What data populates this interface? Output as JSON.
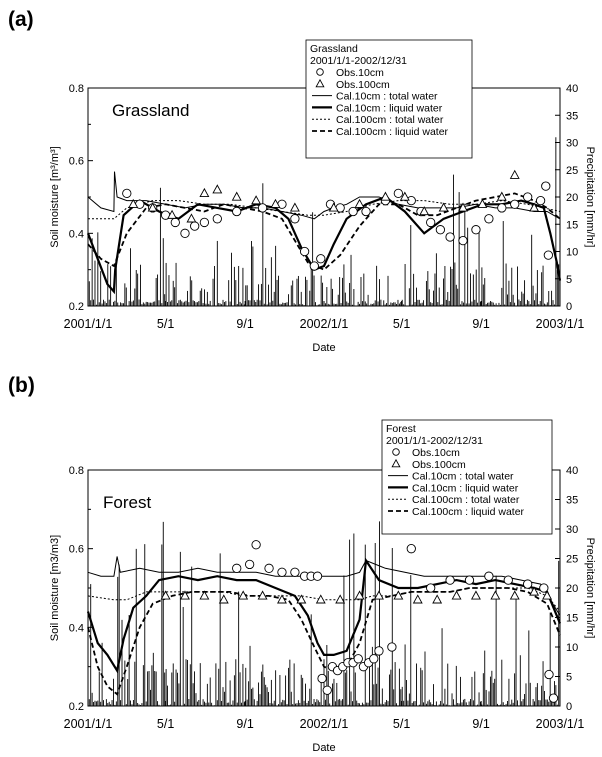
{
  "chart_data": [
    {
      "type": "line",
      "panel_label": "(a)",
      "panel_title": "Grassland",
      "xlabel": "Date",
      "ylabel": "Soil moisture [m³/m³]",
      "y2label": "Precipitation [mm/hr]",
      "ylim": [
        0.2,
        0.8
      ],
      "y2lim": [
        0,
        40
      ],
      "x_ticks": [
        "2001/1/1",
        "5/1",
        "9/1",
        "2002/1/1",
        "5/1",
        "9/1",
        "2003/1/1"
      ],
      "y_ticks": [
        "0.2",
        "0.4",
        "0.6",
        "0.8"
      ],
      "y2_ticks": [
        "0",
        "5",
        "10",
        "15",
        "20",
        "25",
        "30",
        "35",
        "40"
      ],
      "legend": {
        "title": "Grassland",
        "period": "2001/1/1-2002/12/31",
        "entries": [
          "Obs.10cm",
          "Obs.100cm",
          "Cal.10cm : total water",
          "Cal.10cm : liquid water",
          "Cal.100cm : total water",
          "Cal.100cm : liquid water"
        ]
      },
      "series": [
        {
          "name": "Cal.10cm : total water",
          "x": [
            0,
            20,
            40,
            41,
            45,
            60,
            90,
            120,
            150,
            180,
            210,
            240,
            270,
            300,
            330,
            350,
            365,
            380,
            400,
            420,
            450,
            480,
            510,
            540,
            570,
            600,
            630,
            660,
            690,
            710,
            720,
            730
          ],
          "values": [
            0.5,
            0.47,
            0.46,
            0.57,
            0.5,
            0.49,
            0.49,
            0.48,
            0.47,
            0.48,
            0.48,
            0.47,
            0.47,
            0.46,
            0.45,
            0.44,
            0.46,
            0.47,
            0.48,
            0.5,
            0.5,
            0.48,
            0.47,
            0.47,
            0.47,
            0.48,
            0.47,
            0.47,
            0.46,
            0.46,
            0.45,
            0.44
          ]
        },
        {
          "name": "Cal.10cm : liquid water",
          "x": [
            0,
            15,
            30,
            40,
            42,
            55,
            80,
            110,
            140,
            170,
            200,
            230,
            260,
            290,
            310,
            330,
            350,
            365,
            380,
            400,
            430,
            460,
            490,
            520,
            550,
            580,
            610,
            640,
            670,
            690,
            705,
            715,
            725,
            730
          ],
          "values": [
            0.4,
            0.33,
            0.26,
            0.24,
            0.3,
            0.45,
            0.49,
            0.46,
            0.44,
            0.48,
            0.47,
            0.46,
            0.48,
            0.47,
            0.44,
            0.36,
            0.3,
            0.31,
            0.37,
            0.44,
            0.48,
            0.5,
            0.46,
            0.4,
            0.44,
            0.46,
            0.48,
            0.48,
            0.49,
            0.48,
            0.47,
            0.4,
            0.32,
            0.27
          ]
        },
        {
          "name": "Cal.100cm : total water",
          "x": [
            0,
            40,
            60,
            100,
            140,
            180,
            220,
            260,
            300,
            340,
            365,
            400,
            440,
            480,
            520,
            560,
            600,
            640,
            680,
            730
          ],
          "values": [
            0.44,
            0.44,
            0.47,
            0.49,
            0.49,
            0.48,
            0.48,
            0.47,
            0.46,
            0.45,
            0.45,
            0.46,
            0.48,
            0.49,
            0.49,
            0.48,
            0.48,
            0.49,
            0.48,
            0.46
          ]
        },
        {
          "name": "Cal.100cm : liquid water",
          "x": [
            0,
            20,
            40,
            60,
            90,
            120,
            150,
            180,
            210,
            240,
            270,
            300,
            320,
            340,
            365,
            390,
            420,
            450,
            480,
            510,
            540,
            570,
            600,
            630,
            660,
            690,
            710,
            730
          ],
          "values": [
            0.37,
            0.33,
            0.31,
            0.4,
            0.47,
            0.48,
            0.47,
            0.46,
            0.48,
            0.47,
            0.46,
            0.44,
            0.38,
            0.32,
            0.3,
            0.34,
            0.42,
            0.48,
            0.48,
            0.45,
            0.45,
            0.47,
            0.49,
            0.5,
            0.51,
            0.49,
            0.47,
            0.44
          ]
        },
        {
          "name": "Obs.10cm",
          "x": [
            60,
            80,
            100,
            120,
            135,
            150,
            165,
            180,
            200,
            230,
            270,
            300,
            320,
            335,
            350,
            360,
            375,
            390,
            410,
            430,
            460,
            480,
            500,
            515,
            530,
            545,
            560,
            580,
            600,
            620,
            640,
            660,
            680,
            700,
            708,
            712
          ],
          "values": [
            0.51,
            0.48,
            0.47,
            0.45,
            0.43,
            0.4,
            0.42,
            0.43,
            0.44,
            0.46,
            0.47,
            0.48,
            0.44,
            0.35,
            0.31,
            0.33,
            0.48,
            0.47,
            0.46,
            0.46,
            0.49,
            0.51,
            0.49,
            0.46,
            0.43,
            0.41,
            0.39,
            0.38,
            0.41,
            0.44,
            0.47,
            0.48,
            0.5,
            0.49,
            0.53,
            0.34
          ]
        },
        {
          "name": "Obs.100cm",
          "x": [
            70,
            100,
            130,
            160,
            180,
            200,
            230,
            260,
            290,
            320,
            380,
            420,
            460,
            490,
            520,
            550,
            580,
            610,
            640,
            660,
            690
          ],
          "values": [
            0.48,
            0.47,
            0.45,
            0.44,
            0.51,
            0.52,
            0.5,
            0.49,
            0.48,
            0.47,
            0.47,
            0.48,
            0.5,
            0.5,
            0.46,
            0.47,
            0.47,
            0.48,
            0.5,
            0.56,
            0.47
          ]
        }
      ]
    },
    {
      "type": "line",
      "panel_label": "(b)",
      "panel_title": "Forest",
      "xlabel": "Date",
      "ylabel": "Soil moisture [m3/m3]",
      "y2label": "Precipitation [mm/hr]",
      "ylim": [
        0.2,
        0.8
      ],
      "y2lim": [
        0,
        40
      ],
      "x_ticks": [
        "2001/1/1",
        "5/1",
        "9/1",
        "2002/1/1",
        "5/1",
        "9/1",
        "2003/1/1"
      ],
      "y_ticks": [
        "0.2",
        "0.4",
        "0.6",
        "0.8"
      ],
      "y2_ticks": [
        "0",
        "5",
        "10",
        "15",
        "20",
        "25",
        "30",
        "35",
        "40"
      ],
      "legend": {
        "title": "Forest",
        "period": "2001/1/1-2002/12/31",
        "entries": [
          "Obs.10cm",
          "Obs.100cm",
          "Cal.10cm : total water",
          "Cal.10cm : liquid water",
          "Cal.100cm : total water",
          "Cal.100cm : liquid water"
        ]
      },
      "series": [
        {
          "name": "Cal.10cm : total water",
          "x": [
            0,
            20,
            40,
            45,
            50,
            80,
            110,
            140,
            170,
            200,
            230,
            260,
            290,
            320,
            350,
            365,
            380,
            400,
            420,
            430,
            460,
            490,
            520,
            550,
            580,
            610,
            640,
            670,
            700,
            715,
            730
          ],
          "values": [
            0.54,
            0.53,
            0.53,
            0.58,
            0.54,
            0.55,
            0.54,
            0.54,
            0.55,
            0.54,
            0.54,
            0.54,
            0.53,
            0.53,
            0.53,
            0.53,
            0.53,
            0.53,
            0.54,
            0.57,
            0.55,
            0.54,
            0.53,
            0.53,
            0.53,
            0.53,
            0.53,
            0.52,
            0.51,
            0.47,
            0.43
          ]
        },
        {
          "name": "Cal.10cm : liquid water",
          "x": [
            0,
            15,
            30,
            45,
            55,
            70,
            90,
            110,
            140,
            170,
            200,
            230,
            260,
            290,
            320,
            340,
            355,
            365,
            380,
            400,
            420,
            430,
            450,
            480,
            510,
            540,
            570,
            600,
            630,
            660,
            690,
            710,
            720,
            730
          ],
          "values": [
            0.44,
            0.36,
            0.33,
            0.29,
            0.37,
            0.45,
            0.48,
            0.52,
            0.53,
            0.52,
            0.53,
            0.52,
            0.52,
            0.5,
            0.48,
            0.43,
            0.36,
            0.33,
            0.33,
            0.34,
            0.42,
            0.57,
            0.52,
            0.5,
            0.5,
            0.51,
            0.52,
            0.51,
            0.52,
            0.51,
            0.5,
            0.49,
            0.45,
            0.41
          ]
        },
        {
          "name": "Cal.100cm : total water",
          "x": [
            0,
            40,
            60,
            90,
            120,
            150,
            180,
            210,
            240,
            270,
            300,
            330,
            365,
            400,
            420,
            440,
            470,
            500,
            530,
            560,
            590,
            620,
            650,
            680,
            710,
            730
          ],
          "values": [
            0.48,
            0.47,
            0.47,
            0.49,
            0.49,
            0.49,
            0.49,
            0.49,
            0.48,
            0.48,
            0.48,
            0.48,
            0.47,
            0.47,
            0.47,
            0.48,
            0.48,
            0.49,
            0.49,
            0.49,
            0.5,
            0.5,
            0.5,
            0.5,
            0.48,
            0.44
          ]
        },
        {
          "name": "Cal.100cm : liquid water",
          "x": [
            0,
            15,
            30,
            45,
            60,
            80,
            100,
            130,
            160,
            190,
            220,
            250,
            280,
            310,
            330,
            350,
            365,
            380,
            400,
            420,
            440,
            470,
            500,
            530,
            560,
            590,
            620,
            650,
            680,
            710,
            730
          ],
          "values": [
            0.4,
            0.3,
            0.25,
            0.23,
            0.3,
            0.4,
            0.46,
            0.48,
            0.49,
            0.49,
            0.49,
            0.48,
            0.48,
            0.47,
            0.42,
            0.35,
            0.3,
            0.29,
            0.3,
            0.36,
            0.47,
            0.48,
            0.49,
            0.49,
            0.49,
            0.5,
            0.5,
            0.5,
            0.49,
            0.46,
            0.38
          ]
        },
        {
          "name": "Obs.10cm",
          "x": [
            230,
            250,
            260,
            280,
            300,
            320,
            335,
            345,
            355,
            362,
            370,
            378,
            386,
            394,
            402,
            410,
            418,
            426,
            434,
            442,
            450,
            470,
            500,
            530,
            560,
            590,
            620,
            650,
            680,
            705,
            713,
            720
          ],
          "values": [
            0.55,
            0.56,
            0.61,
            0.55,
            0.54,
            0.54,
            0.53,
            0.53,
            0.53,
            0.27,
            0.24,
            0.3,
            0.29,
            0.3,
            0.31,
            0.31,
            0.32,
            0.3,
            0.31,
            0.32,
            0.34,
            0.35,
            0.6,
            0.5,
            0.52,
            0.52,
            0.53,
            0.52,
            0.51,
            0.5,
            0.28,
            0.22
          ]
        },
        {
          "name": "Obs.100cm",
          "x": [
            120,
            150,
            180,
            210,
            240,
            270,
            300,
            330,
            360,
            390,
            420,
            450,
            480,
            510,
            540,
            570,
            600,
            630,
            660,
            690,
            710
          ],
          "values": [
            0.48,
            0.48,
            0.48,
            0.47,
            0.48,
            0.48,
            0.47,
            0.47,
            0.47,
            0.47,
            0.48,
            0.48,
            0.48,
            0.47,
            0.47,
            0.48,
            0.48,
            0.48,
            0.48,
            0.49,
            0.48
          ]
        }
      ]
    }
  ]
}
